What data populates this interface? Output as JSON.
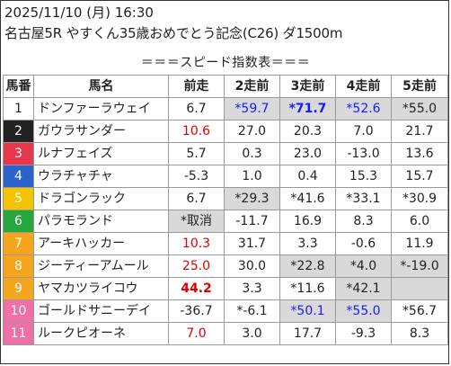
{
  "header": {
    "line1": "2025/11/10 (月) 16:30",
    "line2": "名古屋5R やすくん35歳おめでとう記念(C26) ダ1500m",
    "subtitle": "＝＝＝スピード指数表＝＝＝"
  },
  "columns": [
    "馬番",
    "馬名",
    "前走",
    "2走前",
    "3走前",
    "4走前",
    "5走前"
  ],
  "rows": [
    {
      "no": "1",
      "name": "ドンファーラウェイ",
      "cells": [
        {
          "v": "6.7"
        },
        {
          "v": "*59.7",
          "c": "blue",
          "hl": true
        },
        {
          "v": "*71.7",
          "c": "blue",
          "b": true,
          "hl": true
        },
        {
          "v": "*52.6",
          "c": "blue",
          "hl": true
        },
        {
          "v": "*55.0",
          "hl": true
        }
      ]
    },
    {
      "no": "2",
      "name": "ガウラサンダー",
      "cells": [
        {
          "v": "10.6",
          "c": "red"
        },
        {
          "v": "27.0"
        },
        {
          "v": "20.3"
        },
        {
          "v": "7.0"
        },
        {
          "v": "21.7"
        }
      ]
    },
    {
      "no": "3",
      "name": "ルナフェイズ",
      "cells": [
        {
          "v": "5.7"
        },
        {
          "v": "0.3"
        },
        {
          "v": "23.0"
        },
        {
          "v": "-13.0"
        },
        {
          "v": "13.6"
        }
      ]
    },
    {
      "no": "4",
      "name": "ウラチャチャ",
      "cells": [
        {
          "v": "-5.3"
        },
        {
          "v": "1.0"
        },
        {
          "v": "0.4"
        },
        {
          "v": "15.3"
        },
        {
          "v": "15.7"
        }
      ]
    },
    {
      "no": "5",
      "name": "ドラゴンラック",
      "cells": [
        {
          "v": "6.7"
        },
        {
          "v": "*29.3",
          "hl": true
        },
        {
          "v": "*41.6"
        },
        {
          "v": "*33.1"
        },
        {
          "v": "*30.9"
        }
      ]
    },
    {
      "no": "6",
      "name": "パラモランド",
      "cells": [
        {
          "v": "*取消",
          "hl": true
        },
        {
          "v": "-11.7"
        },
        {
          "v": "16.9"
        },
        {
          "v": "8.3"
        },
        {
          "v": "6.0"
        }
      ]
    },
    {
      "no": "7",
      "name": "アーキハッカー",
      "cells": [
        {
          "v": "10.3",
          "c": "red"
        },
        {
          "v": "31.7"
        },
        {
          "v": "3.3"
        },
        {
          "v": "-0.6"
        },
        {
          "v": "11.9"
        }
      ]
    },
    {
      "no": "8",
      "name": "ジーティーアムール",
      "cells": [
        {
          "v": "25.0",
          "c": "red"
        },
        {
          "v": "30.0"
        },
        {
          "v": "*22.8",
          "hl": true
        },
        {
          "v": "*4.0",
          "hl": true
        },
        {
          "v": "*-19.0",
          "hl": true
        }
      ]
    },
    {
      "no": "9",
      "name": "ヤマカツライコウ",
      "cells": [
        {
          "v": "44.2",
          "c": "red",
          "b": true
        },
        {
          "v": "3.3"
        },
        {
          "v": "*11.6"
        },
        {
          "v": "*42.1",
          "hl": true
        },
        {
          "v": "",
          "hl": true
        }
      ]
    },
    {
      "no": "10",
      "name": "ゴールドサニーデイ",
      "cells": [
        {
          "v": "-36.7"
        },
        {
          "v": "*-6.1"
        },
        {
          "v": "*50.1",
          "c": "blue",
          "hl": true
        },
        {
          "v": "*55.0",
          "c": "blue",
          "hl": true
        },
        {
          "v": "*56.7"
        }
      ]
    },
    {
      "no": "11",
      "name": "ルークピオーネ",
      "cells": [
        {
          "v": "7.0",
          "c": "red"
        },
        {
          "v": "3.0"
        },
        {
          "v": "17.7"
        },
        {
          "v": "-9.3"
        },
        {
          "v": "8.3"
        }
      ]
    }
  ],
  "frame_colors": [
    {
      "bg": "#ffffff",
      "fg": "#222222"
    },
    {
      "bg": "#222222",
      "fg": "#ffffff"
    },
    {
      "bg": "#e8374a",
      "fg": "#ffffff"
    },
    {
      "bg": "#2b63c8",
      "fg": "#ffffff"
    },
    {
      "bg": "#f5c400",
      "fg": "#ffffff"
    },
    {
      "bg": "#27a83c",
      "fg": "#ffffff"
    },
    {
      "bg": "#f4a41d",
      "fg": "#ffffff"
    },
    {
      "bg": "#f4a41d",
      "fg": "#ffffff"
    },
    {
      "bg": "#f4a41d",
      "fg": "#ffffff"
    },
    {
      "bg": "#ef6fa6",
      "fg": "#ffffff"
    },
    {
      "bg": "#ef6fa6",
      "fg": "#ffffff"
    }
  ],
  "colors": {
    "red": "#e00000",
    "blue": "#1a1aff",
    "highlight": "#d9d9d9"
  }
}
